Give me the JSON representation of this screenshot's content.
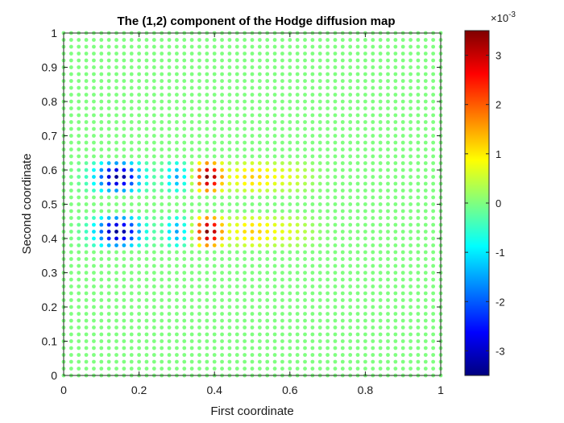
{
  "chart_data": {
    "type": "scatter",
    "title": "The (1,2) component of the Hodge diffusion map",
    "xlabel": "First coordinate",
    "ylabel": "Second coordinate",
    "xlim": [
      0,
      1
    ],
    "ylim": [
      0,
      1
    ],
    "x_ticks": [
      0,
      0.2,
      0.4,
      0.6,
      0.8,
      1
    ],
    "x_tick_labels": [
      "0",
      "0.2",
      "0.4",
      "0.6",
      "0.8",
      "1"
    ],
    "y_ticks": [
      0,
      0.1,
      0.2,
      0.3,
      0.4,
      0.5,
      0.6,
      0.7,
      0.8,
      0.9,
      1
    ],
    "y_tick_labels": [
      "0",
      "0.1",
      "0.2",
      "0.3",
      "0.4",
      "0.5",
      "0.6",
      "0.7",
      "0.8",
      "0.9",
      "1"
    ],
    "grid": false,
    "colormap": "jet",
    "colorbar": {
      "range": [
        -0.0035,
        0.0035
      ],
      "ticks": [
        -3,
        -2,
        -1,
        0,
        1,
        2,
        3
      ],
      "tick_labels": [
        "-3",
        "-2",
        "-1",
        "0",
        "1",
        "2",
        "3"
      ],
      "exponent_label": "×10",
      "exponent_power": "-3"
    },
    "grid_points": {
      "x_count": 51,
      "y_count": 51,
      "x_range": [
        0,
        1
      ],
      "y_range": [
        0,
        1
      ],
      "background_value": 0
    },
    "features": {
      "bands_y": [
        0.42,
        0.58
      ],
      "band_half_width": 0.035,
      "stripes_x": [
        0.145,
        0.3,
        0.385,
        0.5,
        0.6
      ],
      "stripe_amplitude": [
        -0.0034,
        -0.0015,
        0.0035,
        0.0012,
        0.0006
      ],
      "stripe_half_width": [
        0.06,
        0.03,
        0.035,
        0.06,
        0.06
      ]
    }
  },
  "colors": {
    "background": "#ffffff",
    "axes": "#262626"
  }
}
